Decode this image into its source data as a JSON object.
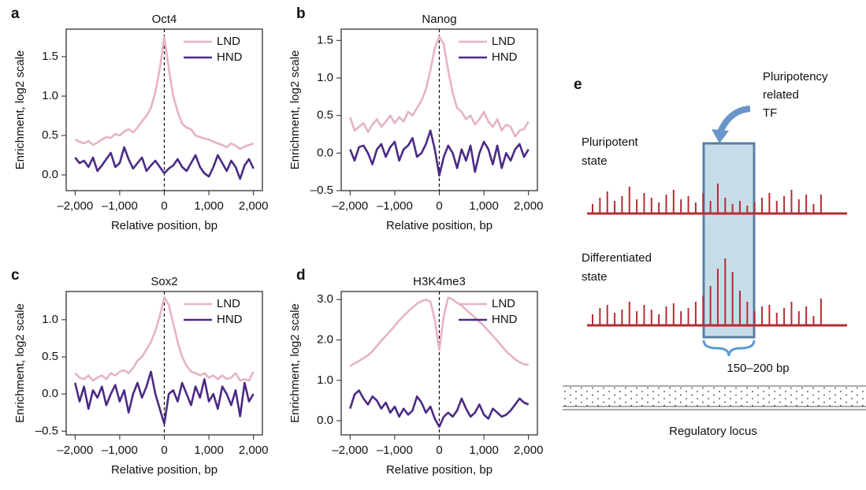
{
  "chart_data": [
    {
      "type": "line",
      "panel": "a",
      "title": "Oct4",
      "xlabel": "Relative position, bp",
      "ylabel": "Enrichment, log2 scale",
      "x": [
        -2000,
        -1900,
        -1800,
        -1700,
        -1600,
        -1500,
        -1400,
        -1300,
        -1200,
        -1100,
        -1000,
        -900,
        -800,
        -700,
        -600,
        -500,
        -400,
        -300,
        -200,
        -100,
        0,
        100,
        200,
        300,
        400,
        500,
        600,
        700,
        800,
        900,
        1000,
        1100,
        1200,
        1300,
        1400,
        1500,
        1600,
        1700,
        1800,
        1900,
        2000
      ],
      "series": [
        {
          "name": "LND",
          "color": "#e6b3c2",
          "values": [
            0.45,
            0.42,
            0.4,
            0.43,
            0.38,
            0.41,
            0.45,
            0.48,
            0.47,
            0.52,
            0.5,
            0.55,
            0.58,
            0.54,
            0.6,
            0.68,
            0.75,
            0.85,
            1.05,
            1.35,
            1.75,
            1.35,
            1.0,
            0.8,
            0.65,
            0.6,
            0.58,
            0.5,
            0.48,
            0.46,
            0.45,
            0.42,
            0.4,
            0.38,
            0.35,
            0.4,
            0.37,
            0.33,
            0.36,
            0.38,
            0.4
          ]
        },
        {
          "name": "HND",
          "color": "#4b2a85",
          "values": [
            0.22,
            0.15,
            0.18,
            0.1,
            0.22,
            0.05,
            0.12,
            0.2,
            0.28,
            0.1,
            0.15,
            0.35,
            0.2,
            0.08,
            0.15,
            0.22,
            0.05,
            0.12,
            0.18,
            0.1,
            0.02,
            0.08,
            0.12,
            0.2,
            0.1,
            0.05,
            0.15,
            0.25,
            0.1,
            0.02,
            -0.02,
            0.1,
            0.25,
            0.15,
            0.05,
            0.18,
            0.1,
            -0.05,
            0.12,
            0.2,
            0.08
          ]
        }
      ],
      "xlim": [
        -2200,
        2200
      ],
      "xticks": [
        {
          "value": -2000,
          "label": "–2,000"
        },
        {
          "value": -1000,
          "label": "–1,000"
        },
        0,
        {
          "value": 1000,
          "label": "1,000"
        },
        {
          "value": 2000,
          "label": "2,000"
        }
      ],
      "ylim": [
        -0.2,
        1.85
      ],
      "yticks": [
        {
          "value": 0,
          "label": "0.0"
        },
        0.5,
        {
          "value": 1,
          "label": "1.0"
        },
        1.5
      ],
      "vline": 0,
      "legend": "top-right"
    },
    {
      "type": "line",
      "panel": "b",
      "title": "Nanog",
      "xlabel": "Relative position, bp",
      "ylabel": "Enrichment, log2 scale",
      "x": [
        -2000,
        -1900,
        -1800,
        -1700,
        -1600,
        -1500,
        -1400,
        -1300,
        -1200,
        -1100,
        -1000,
        -900,
        -800,
        -700,
        -600,
        -500,
        -400,
        -300,
        -200,
        -100,
        0,
        100,
        200,
        300,
        400,
        500,
        600,
        700,
        800,
        900,
        1000,
        1100,
        1200,
        1300,
        1400,
        1500,
        1600,
        1700,
        1800,
        1900,
        2000
      ],
      "series": [
        {
          "name": "LND",
          "color": "#e6b3c2",
          "values": [
            0.48,
            0.3,
            0.35,
            0.4,
            0.28,
            0.38,
            0.45,
            0.35,
            0.42,
            0.5,
            0.4,
            0.48,
            0.42,
            0.55,
            0.5,
            0.6,
            0.7,
            0.85,
            1.1,
            1.4,
            1.55,
            1.45,
            1.1,
            0.8,
            0.6,
            0.55,
            0.45,
            0.5,
            0.38,
            0.45,
            0.55,
            0.42,
            0.35,
            0.45,
            0.3,
            0.38,
            0.35,
            0.22,
            0.3,
            0.32,
            0.42
          ]
        },
        {
          "name": "HND",
          "color": "#4b2a85",
          "values": [
            0.05,
            -0.1,
            0.08,
            0.1,
            0.0,
            -0.15,
            0.05,
            0.12,
            -0.05,
            0.08,
            0.15,
            -0.1,
            0.05,
            0.1,
            0.2,
            -0.05,
            0.0,
            0.12,
            0.3,
            0.05,
            -0.3,
            -0.05,
            0.1,
            0.0,
            -0.2,
            0.05,
            -0.1,
            0.1,
            -0.25,
            0.0,
            0.15,
            0.05,
            -0.15,
            0.1,
            -0.2,
            0.0,
            -0.1,
            0.05,
            0.12,
            -0.05,
            0.05
          ]
        }
      ],
      "xlim": [
        -2200,
        2200
      ],
      "xticks": [
        {
          "value": -2000,
          "label": "–2,000"
        },
        {
          "value": -1000,
          "label": "–1,000"
        },
        0,
        {
          "value": 1000,
          "label": "1,000"
        },
        {
          "value": 2000,
          "label": "2,000"
        }
      ],
      "ylim": [
        -0.5,
        1.65
      ],
      "yticks": [
        {
          "value": -0.5,
          "label": "–0.5"
        },
        {
          "value": 0,
          "label": "0.0"
        },
        0.5,
        {
          "value": 1,
          "label": "1.0"
        },
        1.5
      ],
      "vline": 0,
      "legend": "top-right"
    },
    {
      "type": "line",
      "panel": "c",
      "title": "Sox2",
      "xlabel": "Relative position, bp",
      "ylabel": "Enrichment, log2 scale",
      "x": [
        -2000,
        -1900,
        -1800,
        -1700,
        -1600,
        -1500,
        -1400,
        -1300,
        -1200,
        -1100,
        -1000,
        -900,
        -800,
        -700,
        -600,
        -500,
        -400,
        -300,
        -200,
        -100,
        0,
        100,
        200,
        300,
        400,
        500,
        600,
        700,
        800,
        900,
        1000,
        1100,
        1200,
        1300,
        1400,
        1500,
        1600,
        1700,
        1800,
        1900,
        2000
      ],
      "series": [
        {
          "name": "LND",
          "color": "#e6b3c2",
          "values": [
            0.28,
            0.22,
            0.2,
            0.25,
            0.18,
            0.22,
            0.25,
            0.2,
            0.28,
            0.25,
            0.3,
            0.32,
            0.28,
            0.35,
            0.45,
            0.5,
            0.6,
            0.7,
            0.85,
            1.05,
            1.3,
            1.2,
            0.95,
            0.7,
            0.5,
            0.38,
            0.3,
            0.28,
            0.25,
            0.28,
            0.22,
            0.25,
            0.2,
            0.25,
            0.2,
            0.22,
            0.28,
            0.18,
            0.2,
            0.18,
            0.3
          ]
        },
        {
          "name": "HND",
          "color": "#4b2a85",
          "values": [
            0.15,
            -0.1,
            0.1,
            -0.2,
            0.05,
            -0.05,
            0.1,
            -0.15,
            0.0,
            0.12,
            -0.1,
            0.05,
            -0.25,
            0.0,
            0.15,
            -0.05,
            0.1,
            0.3,
            0.0,
            -0.2,
            -0.4,
            0.0,
            0.05,
            -0.1,
            0.15,
            0.0,
            -0.15,
            0.1,
            -0.05,
            0.2,
            -0.1,
            0.0,
            -0.2,
            0.1,
            0.0,
            -0.15,
            0.05,
            -0.3,
            0.15,
            -0.1,
            0.0
          ]
        }
      ],
      "xlim": [
        -2200,
        2200
      ],
      "xticks": [
        {
          "value": -2000,
          "label": "–2,000"
        },
        {
          "value": -1000,
          "label": "–1,000"
        },
        0,
        {
          "value": 1000,
          "label": "1,000"
        },
        {
          "value": 2000,
          "label": "2,000"
        }
      ],
      "ylim": [
        -0.55,
        1.38
      ],
      "yticks": [
        {
          "value": -0.5,
          "label": "–0.5"
        },
        {
          "value": 0,
          "label": "0.0"
        },
        0.5,
        {
          "value": 1,
          "label": "1.0"
        }
      ],
      "vline": 0,
      "legend": "top-right"
    },
    {
      "type": "line",
      "panel": "d",
      "title": "H3K4me3",
      "xlabel": "Relative position, bp",
      "ylabel": "Enrichment, log2 scale",
      "x": [
        -2000,
        -1900,
        -1800,
        -1700,
        -1600,
        -1500,
        -1400,
        -1300,
        -1200,
        -1100,
        -1000,
        -900,
        -800,
        -700,
        -600,
        -500,
        -400,
        -300,
        -200,
        -100,
        0,
        100,
        200,
        300,
        400,
        500,
        600,
        700,
        800,
        900,
        1000,
        1100,
        1200,
        1300,
        1400,
        1500,
        1600,
        1700,
        1800,
        1900,
        2000
      ],
      "series": [
        {
          "name": "LND",
          "color": "#e6b3c2",
          "values": [
            1.35,
            1.42,
            1.48,
            1.55,
            1.62,
            1.72,
            1.85,
            1.98,
            2.1,
            2.22,
            2.35,
            2.48,
            2.6,
            2.7,
            2.8,
            2.9,
            2.96,
            3.0,
            2.95,
            2.5,
            1.75,
            2.6,
            3.05,
            3.0,
            2.92,
            2.85,
            2.75,
            2.65,
            2.55,
            2.45,
            2.35,
            2.22,
            2.1,
            1.98,
            1.85,
            1.72,
            1.62,
            1.52,
            1.45,
            1.4,
            1.38
          ]
        },
        {
          "name": "HND",
          "color": "#4b2a85",
          "values": [
            0.3,
            0.65,
            0.75,
            0.55,
            0.4,
            0.6,
            0.5,
            0.3,
            0.45,
            0.2,
            0.35,
            0.1,
            0.3,
            0.15,
            0.25,
            0.6,
            0.45,
            0.2,
            0.35,
            0.05,
            -0.15,
            0.1,
            0.2,
            0.1,
            0.25,
            0.55,
            0.3,
            0.1,
            0.2,
            0.4,
            0.15,
            0.05,
            0.3,
            0.2,
            0.1,
            0.15,
            0.25,
            0.4,
            0.55,
            0.45,
            0.4
          ]
        }
      ],
      "xlim": [
        -2200,
        2200
      ],
      "xticks": [
        {
          "value": -2000,
          "label": "–2,000"
        },
        {
          "value": -1000,
          "label": "–1,000"
        },
        0,
        {
          "value": 1000,
          "label": "1,000"
        },
        {
          "value": 2000,
          "label": "2,000"
        }
      ],
      "ylim": [
        -0.35,
        3.2
      ],
      "yticks": [
        {
          "value": 0,
          "label": "0.0"
        },
        {
          "value": 1,
          "label": "1.0"
        },
        {
          "value": 2,
          "label": "2.0"
        },
        {
          "value": 3,
          "label": "3.0"
        }
      ],
      "vline": 0,
      "legend": "top-right"
    }
  ],
  "diagram": {
    "panel": "e",
    "tf_label": [
      "Pluripotency",
      "related",
      "TF"
    ],
    "top_state": [
      "Pluripotent",
      "state"
    ],
    "bottom_state": [
      "Differentiated",
      "state"
    ],
    "width_label": "150–200 bp",
    "locus_label": "Regulatory locus"
  }
}
